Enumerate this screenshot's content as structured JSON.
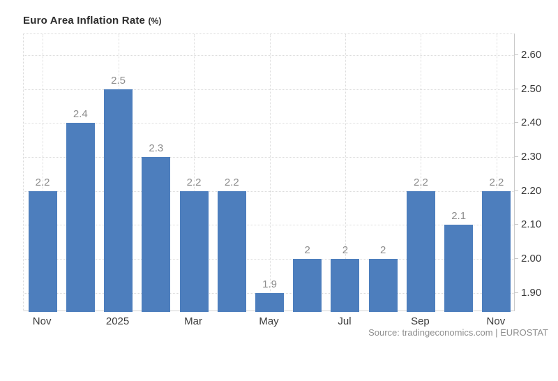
{
  "title": {
    "main": "Euro Area Inflation Rate",
    "suffix": "(%)"
  },
  "source": "Source: tradingeconomics.com | EUROSTAT",
  "colors": {
    "bar": "#4d7ebd",
    "gridline": "#dcdcdc",
    "axis_line": "#c9c9c9",
    "value_label": "#8c8c8c",
    "tick_label": "#3a3a3a",
    "title": "#2b2b2b",
    "source_text": "#8f8f8f",
    "background": "#ffffff"
  },
  "chart_data": {
    "type": "bar",
    "title": "Euro Area Inflation Rate (%)",
    "categories": [
      "Nov",
      "",
      "2025",
      "",
      "Mar",
      "",
      "May",
      "",
      "Jul",
      "",
      "Sep",
      "",
      "Nov"
    ],
    "values": [
      2.2,
      2.4,
      2.5,
      2.3,
      2.2,
      2.2,
      1.9,
      2,
      2,
      2,
      2.2,
      2.1,
      2.2
    ],
    "bar_labels": [
      "2.2",
      "2.4",
      "2.5",
      "2.3",
      "2.2",
      "2.2",
      "1.9",
      "2",
      "2",
      "2",
      "2.2",
      "2.1",
      "2.2"
    ],
    "x_tick_labels": [
      {
        "index": 0,
        "label": "Nov"
      },
      {
        "index": 2,
        "label": "2025"
      },
      {
        "index": 4,
        "label": "Mar"
      },
      {
        "index": 6,
        "label": "May"
      },
      {
        "index": 8,
        "label": "Jul"
      },
      {
        "index": 10,
        "label": "Sep"
      },
      {
        "index": 12,
        "label": "Nov"
      }
    ],
    "y_ticks": [
      1.9,
      2.0,
      2.1,
      2.2,
      2.3,
      2.4,
      2.5,
      2.6
    ],
    "y_tick_labels": [
      "1.90",
      "2.00",
      "2.10",
      "2.20",
      "2.30",
      "2.40",
      "2.50",
      "2.60"
    ],
    "ylim": [
      1.844,
      2.662
    ],
    "xlabel": "",
    "ylabel": "",
    "grid": "dotted",
    "legend": "none",
    "y_axis_position": "right"
  }
}
